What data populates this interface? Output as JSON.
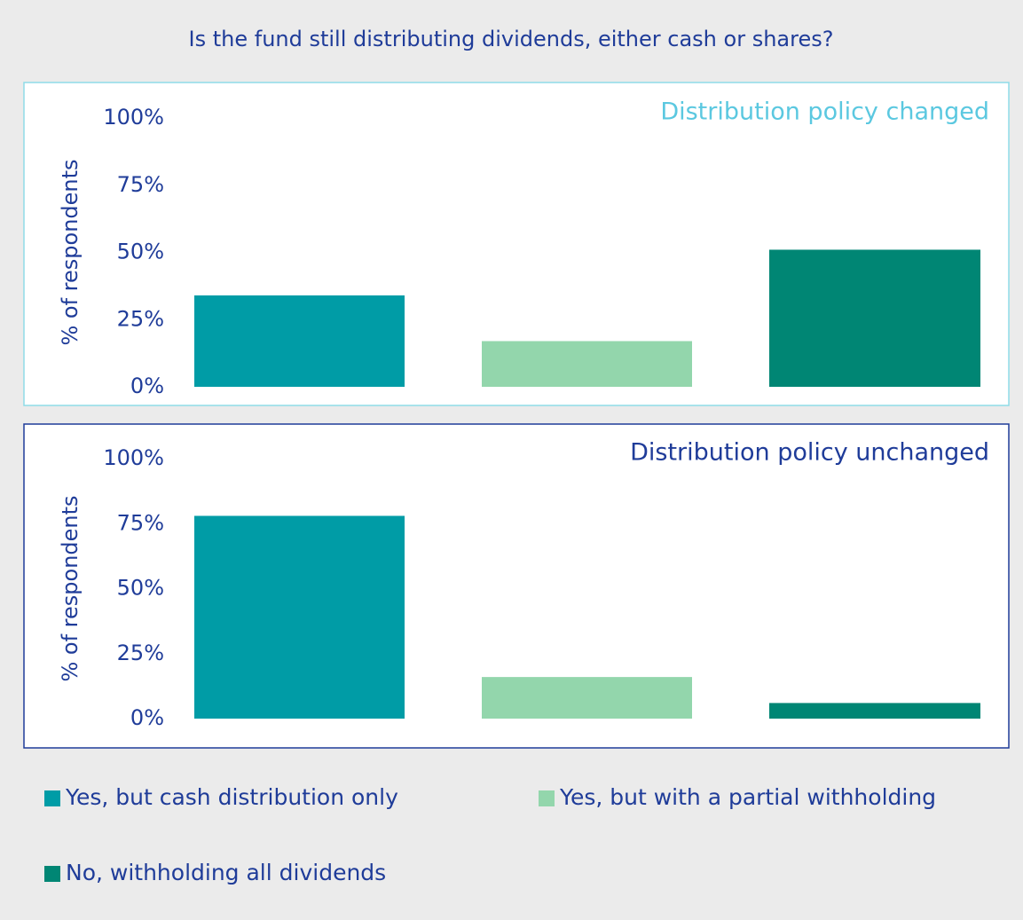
{
  "title": "Is the fund still distributing dividends, either cash or shares?",
  "legend": {
    "labels": [
      "Yes, but cash distribution only",
      "Yes, but with a partial withholding",
      "No, withholding all dividends"
    ],
    "colors": [
      "#009ca6",
      "#93d6ac",
      "#008674"
    ]
  },
  "chart_data": [
    {
      "type": "bar",
      "title": "Distribution policy changed",
      "title_color": "#5bc8e0",
      "frame_color": "#8fdce8",
      "ylabel": "% of respondents",
      "categories": [
        null,
        null,
        null
      ],
      "values": [
        34,
        17,
        51
      ],
      "ylim": [
        0,
        100
      ],
      "yticks": [
        {
          "value": 0,
          "label": "0%"
        },
        {
          "value": 25,
          "label": "25%"
        },
        {
          "value": 50,
          "label": "50%"
        },
        {
          "value": 75,
          "label": "75%"
        },
        {
          "value": 100,
          "label": "100%"
        }
      ]
    },
    {
      "type": "bar",
      "title": "Distribution policy unchanged",
      "title_color": "#1f3c99",
      "frame_color": "#1f3c99",
      "ylabel": "% of respondents",
      "categories": [
        null,
        null,
        null
      ],
      "values": [
        78,
        16,
        6
      ],
      "ylim": [
        0,
        100
      ],
      "yticks": [
        {
          "value": 0,
          "label": "0%"
        },
        {
          "value": 25,
          "label": "25%"
        },
        {
          "value": 50,
          "label": "50%"
        },
        {
          "value": 75,
          "label": "75%"
        },
        {
          "value": 100,
          "label": "100%"
        }
      ]
    }
  ]
}
